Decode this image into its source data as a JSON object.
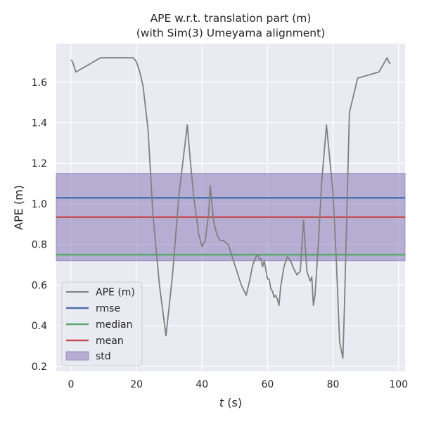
{
  "chart_data": {
    "type": "line",
    "title": "APE w.r.t. translation part (m)",
    "subtitle": "(with Sim(3) Umeyama alignment)",
    "xlabel_var": "t",
    "xlabel_unit": " (s)",
    "ylabel": "APE (m)",
    "xlim": [
      -4.5,
      102
    ],
    "ylim": [
      0.175,
      1.79
    ],
    "xticks": [
      0,
      20,
      40,
      60,
      80,
      100
    ],
    "yticks": [
      0.2,
      0.4,
      0.6,
      0.8,
      1.0,
      1.2,
      1.4,
      1.6
    ],
    "ytick_labels": [
      "0.2",
      "0.4",
      "0.6",
      "0.8",
      "1.0",
      "1.2",
      "1.4",
      "1.6"
    ],
    "grid": true,
    "legend_position": "lower-left",
    "legend": [
      "APE (m)",
      "rmse",
      "median",
      "mean",
      "std"
    ],
    "colors": {
      "ape": "#808080",
      "rmse": "#4c72b0",
      "median": "#55a868",
      "mean": "#c44e52",
      "std": "#8172b2",
      "background": "#eaeaf2",
      "grid": "#ffffff"
    },
    "stats": {
      "rmse": 1.03,
      "median": 0.75,
      "mean": 0.935,
      "std_low": 0.72,
      "std_high": 1.15
    },
    "series": [
      {
        "name": "APE (m)",
        "x": [
          0,
          0.5,
          1.5,
          9,
          19,
          20,
          21,
          22,
          23.5,
          25,
          27,
          29,
          31,
          33,
          35.5,
          36.5,
          37.5,
          39,
          40,
          41,
          42,
          42.5,
          43.5,
          44.5,
          45.5,
          46.5,
          48,
          50,
          52,
          53.5,
          54.5,
          55.5,
          56.5,
          57,
          57.5,
          58,
          58.5,
          59,
          60,
          60.5,
          61,
          61.5,
          62,
          62.5,
          63,
          63.5,
          64,
          65,
          66,
          67,
          68,
          69,
          70,
          71,
          72,
          73,
          73.5,
          74,
          74.5,
          75.5,
          76.5,
          78,
          80,
          81,
          82,
          83,
          83.5,
          85,
          87.5,
          94,
          96.5,
          97,
          97.5
        ],
        "y": [
          1.71,
          1.7,
          1.65,
          1.72,
          1.72,
          1.7,
          1.65,
          1.58,
          1.37,
          0.95,
          0.6,
          0.35,
          0.65,
          1.05,
          1.39,
          1.2,
          1.03,
          0.85,
          0.79,
          0.82,
          0.95,
          1.09,
          0.92,
          0.85,
          0.82,
          0.82,
          0.8,
          0.7,
          0.6,
          0.55,
          0.62,
          0.7,
          0.74,
          0.75,
          0.73,
          0.73,
          0.69,
          0.72,
          0.63,
          0.63,
          0.58,
          0.57,
          0.54,
          0.55,
          0.53,
          0.5,
          0.59,
          0.69,
          0.74,
          0.72,
          0.68,
          0.65,
          0.67,
          0.92,
          0.67,
          0.62,
          0.64,
          0.5,
          0.55,
          0.8,
          1.1,
          1.39,
          1.05,
          0.72,
          0.32,
          0.24,
          0.5,
          1.45,
          1.62,
          1.65,
          1.72,
          1.7,
          1.69
        ]
      }
    ]
  }
}
